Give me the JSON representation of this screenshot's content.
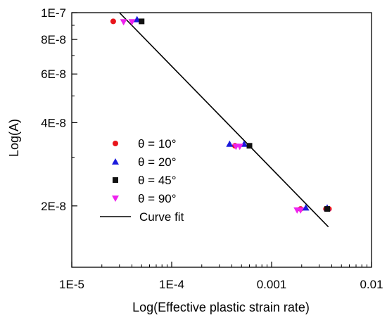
{
  "chart_data": {
    "type": "scatter",
    "xlabel": "Log(Effective plastic strain rate)",
    "ylabel": "Log(A)",
    "x_scale": "log",
    "y_scale": "log",
    "xlim": [
      1e-05,
      0.01
    ],
    "ylim": [
      1.2e-08,
      1e-07
    ],
    "x_ticks": [
      {
        "value": 1e-05,
        "label": "1E-5"
      },
      {
        "value": 0.0001,
        "label": "1E-4"
      },
      {
        "value": 0.001,
        "label": "0.001"
      },
      {
        "value": 0.01,
        "label": "0.01"
      }
    ],
    "y_ticks": [
      {
        "value": 2e-08,
        "label": "2E-8"
      },
      {
        "value": 4e-08,
        "label": "4E-8"
      },
      {
        "value": 6e-08,
        "label": "6E-8"
      },
      {
        "value": 8e-08,
        "label": "8E-8"
      },
      {
        "value": 1e-07,
        "label": "1E-7"
      }
    ],
    "grid": false,
    "legend_position": "center-left",
    "series": [
      {
        "name": "θ = 10°",
        "marker": "circle",
        "color": "#e8141b",
        "points": [
          {
            "x": 2.6e-05,
            "y": 9.3e-08
          },
          {
            "x": 0.00043,
            "y": 3.3e-08
          },
          {
            "x": 0.00195,
            "y": 1.95e-08
          },
          {
            "x": 0.0035,
            "y": 1.95e-08
          },
          {
            "x": 0.00375,
            "y": 1.95e-08
          }
        ]
      },
      {
        "name": "θ = 20°",
        "marker": "triangle-up",
        "color": "#1a1adc",
        "points": [
          {
            "x": 4.5e-05,
            "y": 9.45e-08
          },
          {
            "x": 0.00038,
            "y": 3.35e-08
          },
          {
            "x": 0.00053,
            "y": 3.35e-08
          },
          {
            "x": 0.0022,
            "y": 1.97e-08
          },
          {
            "x": 0.0036,
            "y": 1.97e-08
          }
        ]
      },
      {
        "name": "θ = 45°",
        "marker": "square",
        "color": "#111111",
        "points": [
          {
            "x": 5e-05,
            "y": 9.3e-08
          },
          {
            "x": 0.0006,
            "y": 3.3e-08
          },
          {
            "x": 0.0036,
            "y": 1.95e-08
          }
        ]
      },
      {
        "name": "θ = 90°",
        "marker": "triangle-down",
        "color": "#ee22ee",
        "points": [
          {
            "x": 3.3e-05,
            "y": 9.25e-08
          },
          {
            "x": 4e-05,
            "y": 9.25e-08
          },
          {
            "x": 0.00044,
            "y": 3.28e-08
          },
          {
            "x": 0.00048,
            "y": 3.28e-08
          },
          {
            "x": 0.0018,
            "y": 1.93e-08
          },
          {
            "x": 0.00195,
            "y": 1.93e-08
          }
        ]
      },
      {
        "name": "Curve fit",
        "type": "line",
        "color": "#000000",
        "points": [
          {
            "x": 3e-05,
            "y": 1e-07
          },
          {
            "x": 0.0037,
            "y": 1.68e-08
          }
        ]
      }
    ]
  }
}
